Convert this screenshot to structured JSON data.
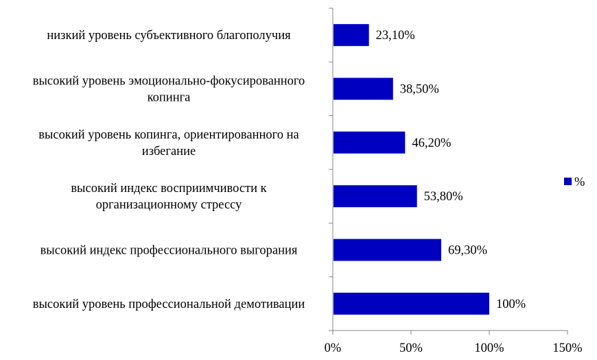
{
  "chart_data": {
    "type": "bar",
    "orientation": "horizontal",
    "categories": [
      [
        "низкий уровень субъективного благополучия"
      ],
      [
        "высокий уровень эмоционально-фокусированного",
        "копинга"
      ],
      [
        "высокий уровень копинга, ориентированного на",
        "избегание"
      ],
      [
        "высокий индекс восприимчивости к",
        "организационному стрессу"
      ],
      [
        "высокий индекс профессионального выгорания"
      ],
      [
        "высокий уровень профессиональной демотивации"
      ]
    ],
    "series": [
      {
        "name": "%",
        "values": [
          23.1,
          38.5,
          46.2,
          53.8,
          69.3,
          100
        ],
        "labels": [
          "23,10%",
          "38,50%",
          "46,20%",
          "53,80%",
          "69,30%",
          "100%"
        ],
        "color": "#0000c0"
      }
    ],
    "xlim": [
      0,
      150
    ],
    "xticks": [
      0,
      50,
      100,
      150
    ],
    "xtick_labels": [
      "0%",
      "50%",
      "100%",
      "150%"
    ],
    "grid": false,
    "legend_position": "right"
  }
}
